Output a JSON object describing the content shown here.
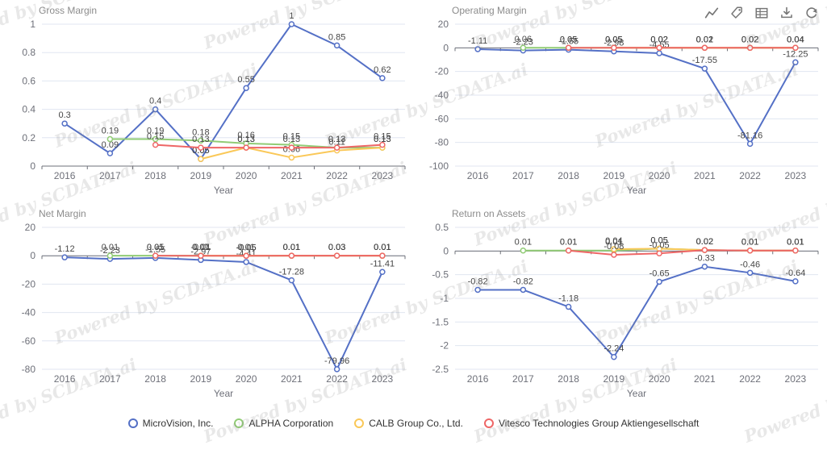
{
  "watermark": {
    "text": "Powered by SCDATA.ai"
  },
  "toolbar": {
    "icons": [
      {
        "name": "line-chart-icon"
      },
      {
        "name": "tag-icon"
      },
      {
        "name": "data-view-icon"
      },
      {
        "name": "download-icon"
      },
      {
        "name": "restore-icon"
      }
    ]
  },
  "legend": {
    "items": [
      {
        "label": "MicroVision, Inc.",
        "color": "#5470c6"
      },
      {
        "label": "ALPHA Corporation",
        "color": "#91cc75"
      },
      {
        "label": "CALB Group Co., Ltd.",
        "color": "#fac858"
      },
      {
        "label": "Vitesco Technologies Group Aktiengesellschaft",
        "color": "#ee6666"
      }
    ]
  },
  "styles": {
    "grid_color": "#e0e6f1",
    "axis_color": "#6e7079",
    "axis_text_color": "#6e7079",
    "label_color": "#464646",
    "title_color": "#8c8c8c"
  },
  "chart_data": [
    {
      "type": "line",
      "id": "gross-margin",
      "title": "Gross Margin",
      "xlabel": "Year",
      "x": [
        "2016",
        "2017",
        "2018",
        "2019",
        "2020",
        "2021",
        "2022",
        "2023"
      ],
      "ylim": [
        0,
        1
      ],
      "yticks": [
        0,
        0.2,
        0.4,
        0.6,
        0.8,
        1
      ],
      "grid": true,
      "series": [
        {
          "name": "MicroVision, Inc.",
          "color": "#5470c6",
          "values": [
            0.3,
            0.09,
            0.4,
            0.05,
            0.55,
            1,
            0.85,
            0.62
          ]
        },
        {
          "name": "ALPHA Corporation",
          "color": "#91cc75",
          "values": [
            null,
            0.19,
            0.19,
            0.18,
            0.16,
            0.15,
            0.13,
            0.13
          ]
        },
        {
          "name": "CALB Group Co., Ltd.",
          "color": "#fac858",
          "values": [
            null,
            null,
            null,
            0.05,
            0.13,
            0.06,
            0.11,
            0.13
          ]
        },
        {
          "name": "Vitesco Technologies Group Aktiengesellschaft",
          "color": "#ee6666",
          "values": [
            null,
            null,
            0.15,
            0.13,
            0.13,
            0.13,
            0.13,
            0.15
          ]
        }
      ]
    },
    {
      "type": "line",
      "id": "operating-margin",
      "title": "Operating Margin",
      "xlabel": "Year",
      "x": [
        "2016",
        "2017",
        "2018",
        "2019",
        "2020",
        "2021",
        "2022",
        "2023"
      ],
      "ylim": [
        -100,
        20
      ],
      "yticks": [
        20,
        0,
        -20,
        -40,
        -60,
        -80,
        -100
      ],
      "grid": true,
      "series": [
        {
          "name": "MicroVision, Inc.",
          "color": "#5470c6",
          "values": [
            -1.11,
            -2.23,
            -1.55,
            -2.98,
            -4.55,
            -17.55,
            -81.16,
            -12.25
          ]
        },
        {
          "name": "ALPHA Corporation",
          "color": "#91cc75",
          "values": [
            null,
            0.06,
            0.05,
            0.05,
            0.02,
            0.01,
            0.02,
            0.04
          ]
        },
        {
          "name": "CALB Group Co., Ltd.",
          "color": "#fac858",
          "values": [
            null,
            null,
            null,
            0.05,
            0.02,
            0.02,
            0.02,
            0.04
          ]
        },
        {
          "name": "Vitesco Technologies Group Aktiengesellschaft",
          "color": "#ee6666",
          "values": [
            null,
            null,
            0.05,
            0.05,
            0.02,
            0.02,
            0.02,
            0.04
          ]
        }
      ]
    },
    {
      "type": "line",
      "id": "net-margin",
      "title": "Net Margin",
      "xlabel": "Year",
      "x": [
        "2016",
        "2017",
        "2018",
        "2019",
        "2020",
        "2021",
        "2022",
        "2023"
      ],
      "ylim": [
        -80,
        20
      ],
      "yticks": [
        20,
        0,
        -20,
        -40,
        -60,
        -80
      ],
      "grid": true,
      "series": [
        {
          "name": "MicroVision, Inc.",
          "color": "#5470c6",
          "values": [
            -1.12,
            -2.23,
            -1.55,
            -2.97,
            -4.41,
            -17.28,
            -79.96,
            -11.41
          ]
        },
        {
          "name": "ALPHA Corporation",
          "color": "#91cc75",
          "values": [
            null,
            0.01,
            0.01,
            0.07,
            -0.05,
            0.01,
            0.03,
            0.01
          ]
        },
        {
          "name": "CALB Group Co., Ltd.",
          "color": "#fac858",
          "values": [
            null,
            null,
            null,
            0.01,
            0.01,
            0.01,
            0.03,
            0.01
          ]
        },
        {
          "name": "Vitesco Technologies Group Aktiengesellschaft",
          "color": "#ee6666",
          "values": [
            null,
            null,
            0.05,
            -0.01,
            -0.05,
            0.01,
            0.03,
            0.01
          ]
        }
      ]
    },
    {
      "type": "line",
      "id": "return-on-assets",
      "title": "Return on Assets",
      "xlabel": "Year",
      "x": [
        "2016",
        "2017",
        "2018",
        "2019",
        "2020",
        "2021",
        "2022",
        "2023"
      ],
      "ylim": [
        -2.5,
        0.5
      ],
      "yticks": [
        0.5,
        0,
        -0.5,
        -1,
        -1.5,
        -2,
        -2.5
      ],
      "grid": true,
      "series": [
        {
          "name": "MicroVision, Inc.",
          "color": "#5470c6",
          "values": [
            -0.82,
            -0.82,
            -1.18,
            -2.24,
            -0.65,
            -0.33,
            -0.46,
            -0.64
          ]
        },
        {
          "name": "ALPHA Corporation",
          "color": "#91cc75",
          "values": [
            null,
            0.01,
            0.01,
            0.01,
            0.05,
            0.02,
            0.01,
            0.01
          ]
        },
        {
          "name": "CALB Group Co., Ltd.",
          "color": "#fac858",
          "values": [
            null,
            null,
            null,
            0.04,
            0.05,
            0.02,
            0.01,
            0.01
          ]
        },
        {
          "name": "Vitesco Technologies Group Aktiengesellschaft",
          "color": "#ee6666",
          "values": [
            null,
            null,
            0.01,
            -0.08,
            -0.05,
            0.02,
            0.01,
            0.01
          ]
        }
      ]
    }
  ]
}
